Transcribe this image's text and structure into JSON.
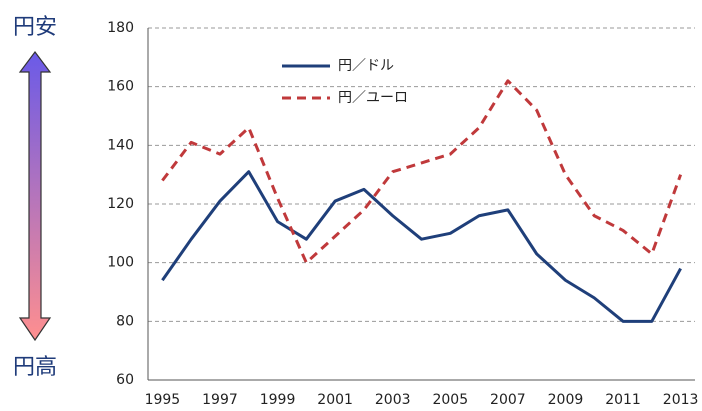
{
  "chart_data": {
    "type": "line",
    "annotations": {
      "top": "円安",
      "bottom": "円高"
    },
    "categories": [
      "1995",
      null,
      "1997",
      null,
      "1999",
      null,
      "2001",
      null,
      "2003",
      null,
      "2005",
      null,
      "2007",
      null,
      "2009",
      null,
      "2011",
      null,
      "2013"
    ],
    "series": [
      {
        "name": "円／ドル",
        "color": "#1f3f7a",
        "dash": "solid",
        "values": [
          94,
          108,
          121,
          131,
          114,
          108,
          121,
          125,
          116,
          108,
          110,
          116,
          118,
          103,
          94,
          88,
          80,
          80,
          98
        ]
      },
      {
        "name": "円／ユーロ",
        "color": "#c0393b",
        "dash": "dashed",
        "values": [
          128,
          141,
          137,
          146,
          122,
          100,
          109,
          118,
          131,
          134,
          137,
          146,
          162,
          152,
          130,
          116,
          111,
          103,
          130
        ]
      }
    ],
    "ylim": [
      60,
      180
    ],
    "yticks": [
      60,
      80,
      100,
      120,
      140,
      160,
      180
    ],
    "grid": true
  }
}
